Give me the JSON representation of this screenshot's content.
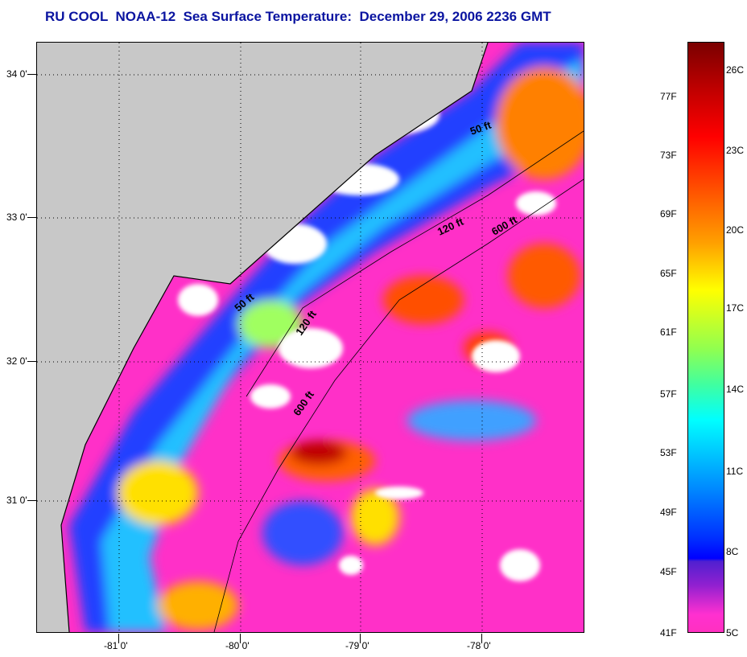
{
  "title": "RU COOL  NOAA-12  Sea Surface Temperature:  December 29, 2006 2236 GMT",
  "map": {
    "lat_labels": [
      "34 0'",
      "33 0'",
      "32 0'",
      "31 0'"
    ],
    "lon_labels": [
      "-81 0'",
      "-80 0'",
      "-79 0'",
      "-78 0'"
    ],
    "contour_labels": [
      "50 ft",
      "120 ft",
      "600 ft",
      "50 ft",
      "120 ft",
      "600 ft"
    ],
    "colors": {
      "land": "#c8c8c8",
      "cloud": "#ffffff",
      "cold": "#ff30c8"
    }
  },
  "colorbar": {
    "fahrenheit": [
      "77F",
      "73F",
      "69F",
      "65F",
      "61F",
      "57F",
      "53F",
      "49F",
      "45F",
      "41F"
    ],
    "celsius": [
      "26C",
      "23C",
      "20C",
      "17C",
      "14C",
      "11C",
      "8C",
      "5C"
    ]
  }
}
